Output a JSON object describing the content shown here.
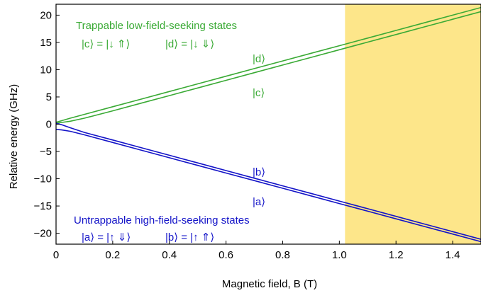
{
  "chart_data": {
    "type": "line",
    "xlabel": "Magnetic field, B (T)",
    "ylabel": "Relative energy (GHz)",
    "xlim": [
      0,
      1.5
    ],
    "ylim": [
      -22,
      22
    ],
    "xticks": [
      "0",
      "0.2",
      "0.4",
      "0.6",
      "0.8",
      "1.0",
      "1.2",
      "1.4"
    ],
    "yticks": [
      "−20",
      "−15",
      "−10",
      "−5",
      "0",
      "5",
      "10",
      "15",
      "20"
    ],
    "xtick_values": [
      0,
      0.2,
      0.4,
      0.6,
      0.8,
      1.0,
      1.2,
      1.4
    ],
    "ytick_values": [
      -20,
      -15,
      -10,
      -5,
      0,
      5,
      10,
      15,
      20
    ],
    "shaded_region": {
      "x_from": 1.02,
      "x_to": 1.5,
      "color": "#fde68a"
    },
    "colors": {
      "trappable": "#3aaa35",
      "untrappable": "#1414c8"
    },
    "series": [
      {
        "name": "|d⟩",
        "group": "trappable",
        "x": [
          0,
          0.01,
          0.02,
          0.05,
          0.1,
          0.2,
          0.3,
          0.4,
          0.5,
          0.6,
          0.7,
          0.8,
          0.9,
          1.0,
          1.1,
          1.2,
          1.3,
          1.4,
          1.5
        ],
        "values": [
          0.35,
          0.5,
          0.65,
          1.1,
          1.8,
          3.2,
          4.6,
          6.0,
          7.4,
          8.8,
          10.2,
          11.6,
          13.0,
          14.4,
          15.8,
          17.2,
          18.6,
          20.0,
          21.4
        ]
      },
      {
        "name": "|c⟩",
        "group": "trappable",
        "x": [
          0,
          0.01,
          0.02,
          0.05,
          0.1,
          0.2,
          0.3,
          0.4,
          0.5,
          0.6,
          0.7,
          0.8,
          0.9,
          1.0,
          1.1,
          1.2,
          1.3,
          1.4,
          1.5
        ],
        "values": [
          0.2,
          0.25,
          0.32,
          0.55,
          1.1,
          2.45,
          3.85,
          5.25,
          6.65,
          8.05,
          9.45,
          10.85,
          12.25,
          13.65,
          15.05,
          16.45,
          17.85,
          19.25,
          20.65
        ]
      },
      {
        "name": "|b⟩",
        "group": "untrappable",
        "x": [
          0,
          0.01,
          0.02,
          0.05,
          0.1,
          0.2,
          0.3,
          0.4,
          0.5,
          0.6,
          0.7,
          0.8,
          0.9,
          1.0,
          1.1,
          1.2,
          1.3,
          1.4,
          1.5
        ],
        "values": [
          0.15,
          0.05,
          -0.1,
          -0.65,
          -1.5,
          -2.9,
          -4.3,
          -5.7,
          -7.1,
          -8.5,
          -9.9,
          -11.3,
          -12.7,
          -14.1,
          -15.5,
          -16.9,
          -18.3,
          -19.7,
          -21.1
        ]
      },
      {
        "name": "|a⟩",
        "group": "untrappable",
        "x": [
          0,
          0.01,
          0.02,
          0.05,
          0.1,
          0.2,
          0.3,
          0.4,
          0.5,
          0.6,
          0.7,
          0.8,
          0.9,
          1.0,
          1.1,
          1.2,
          1.3,
          1.4,
          1.5
        ],
        "values": [
          -0.95,
          -1.0,
          -1.05,
          -1.3,
          -1.95,
          -3.35,
          -4.75,
          -6.15,
          -7.55,
          -8.95,
          -10.35,
          -11.75,
          -13.15,
          -14.55,
          -15.95,
          -17.35,
          -18.75,
          -20.15,
          -21.55
        ]
      }
    ],
    "annotations": {
      "trappable_title": "Trappable low-field-seeking states",
      "c_def": "|c⟩ = |↓ ⇑⟩",
      "d_def": "|d⟩ = |↓ ⇓⟩",
      "untrappable_title": "Untrappable high-field-seeking states",
      "a_def": "|a⟩ = |↑ ⇓⟩",
      "b_def": "|b⟩ = |↑ ⇑⟩",
      "d_label": "|d⟩",
      "c_label": "|c⟩",
      "b_label": "|b⟩",
      "a_label": "|a⟩"
    }
  }
}
